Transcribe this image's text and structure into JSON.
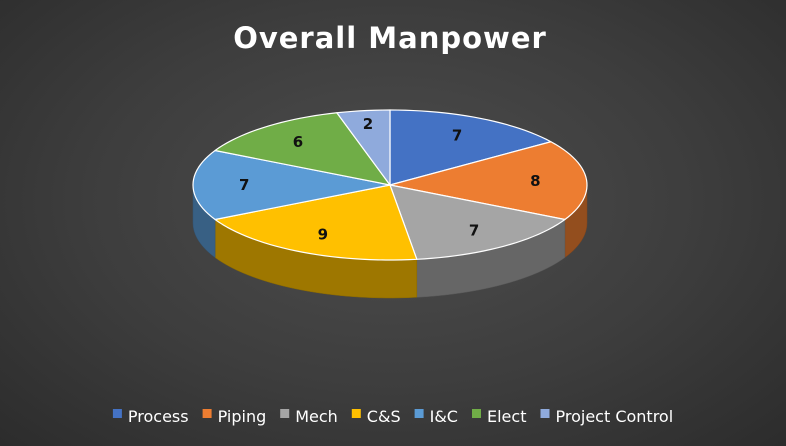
{
  "chart_data": {
    "type": "pie",
    "title": "Overall Manpower",
    "categories": [
      "Process",
      "Piping",
      "Mech",
      "C&S",
      "I&C",
      "Elect",
      "Project Control"
    ],
    "values": [
      7,
      8,
      7,
      9,
      7,
      6,
      2
    ],
    "colors": [
      "#4472c4",
      "#ed7d31",
      "#a5a5a5",
      "#ffc000",
      "#5b9bd5",
      "#70ad47",
      "#8faadc"
    ],
    "data_labels": true,
    "legend": "bottom",
    "style": "3d"
  }
}
